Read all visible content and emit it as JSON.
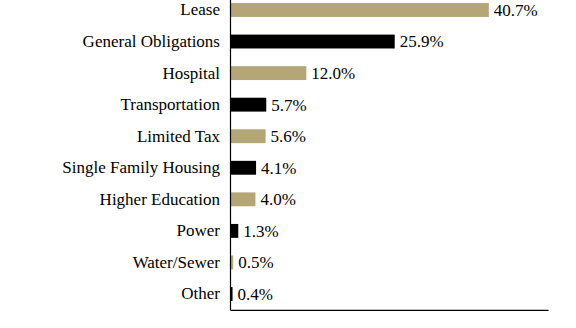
{
  "chart_data": {
    "type": "bar",
    "orientation": "horizontal",
    "categories": [
      "Lease",
      "General Obligations",
      "Hospital",
      "Transportation",
      "Limited Tax",
      "Single Family Housing",
      "Higher Education",
      "Power",
      "Water/Sewer",
      "Other"
    ],
    "values": [
      40.7,
      25.9,
      12.0,
      5.7,
      5.6,
      4.1,
      4.0,
      1.3,
      0.5,
      0.4
    ],
    "value_labels": [
      "40.7%",
      "25.9%",
      "12.0%",
      "5.7%",
      "5.6%",
      "4.1%",
      "4.0%",
      "1.3%",
      "0.5%",
      "0.4%"
    ],
    "colors": [
      "#b5a677",
      "#000000",
      "#b5a677",
      "#000000",
      "#b5a677",
      "#000000",
      "#b5a677",
      "#000000",
      "#b5a677",
      "#000000"
    ],
    "xlim": [
      0,
      50
    ],
    "data_labels": true,
    "tick_labels": "y",
    "grid": false
  }
}
